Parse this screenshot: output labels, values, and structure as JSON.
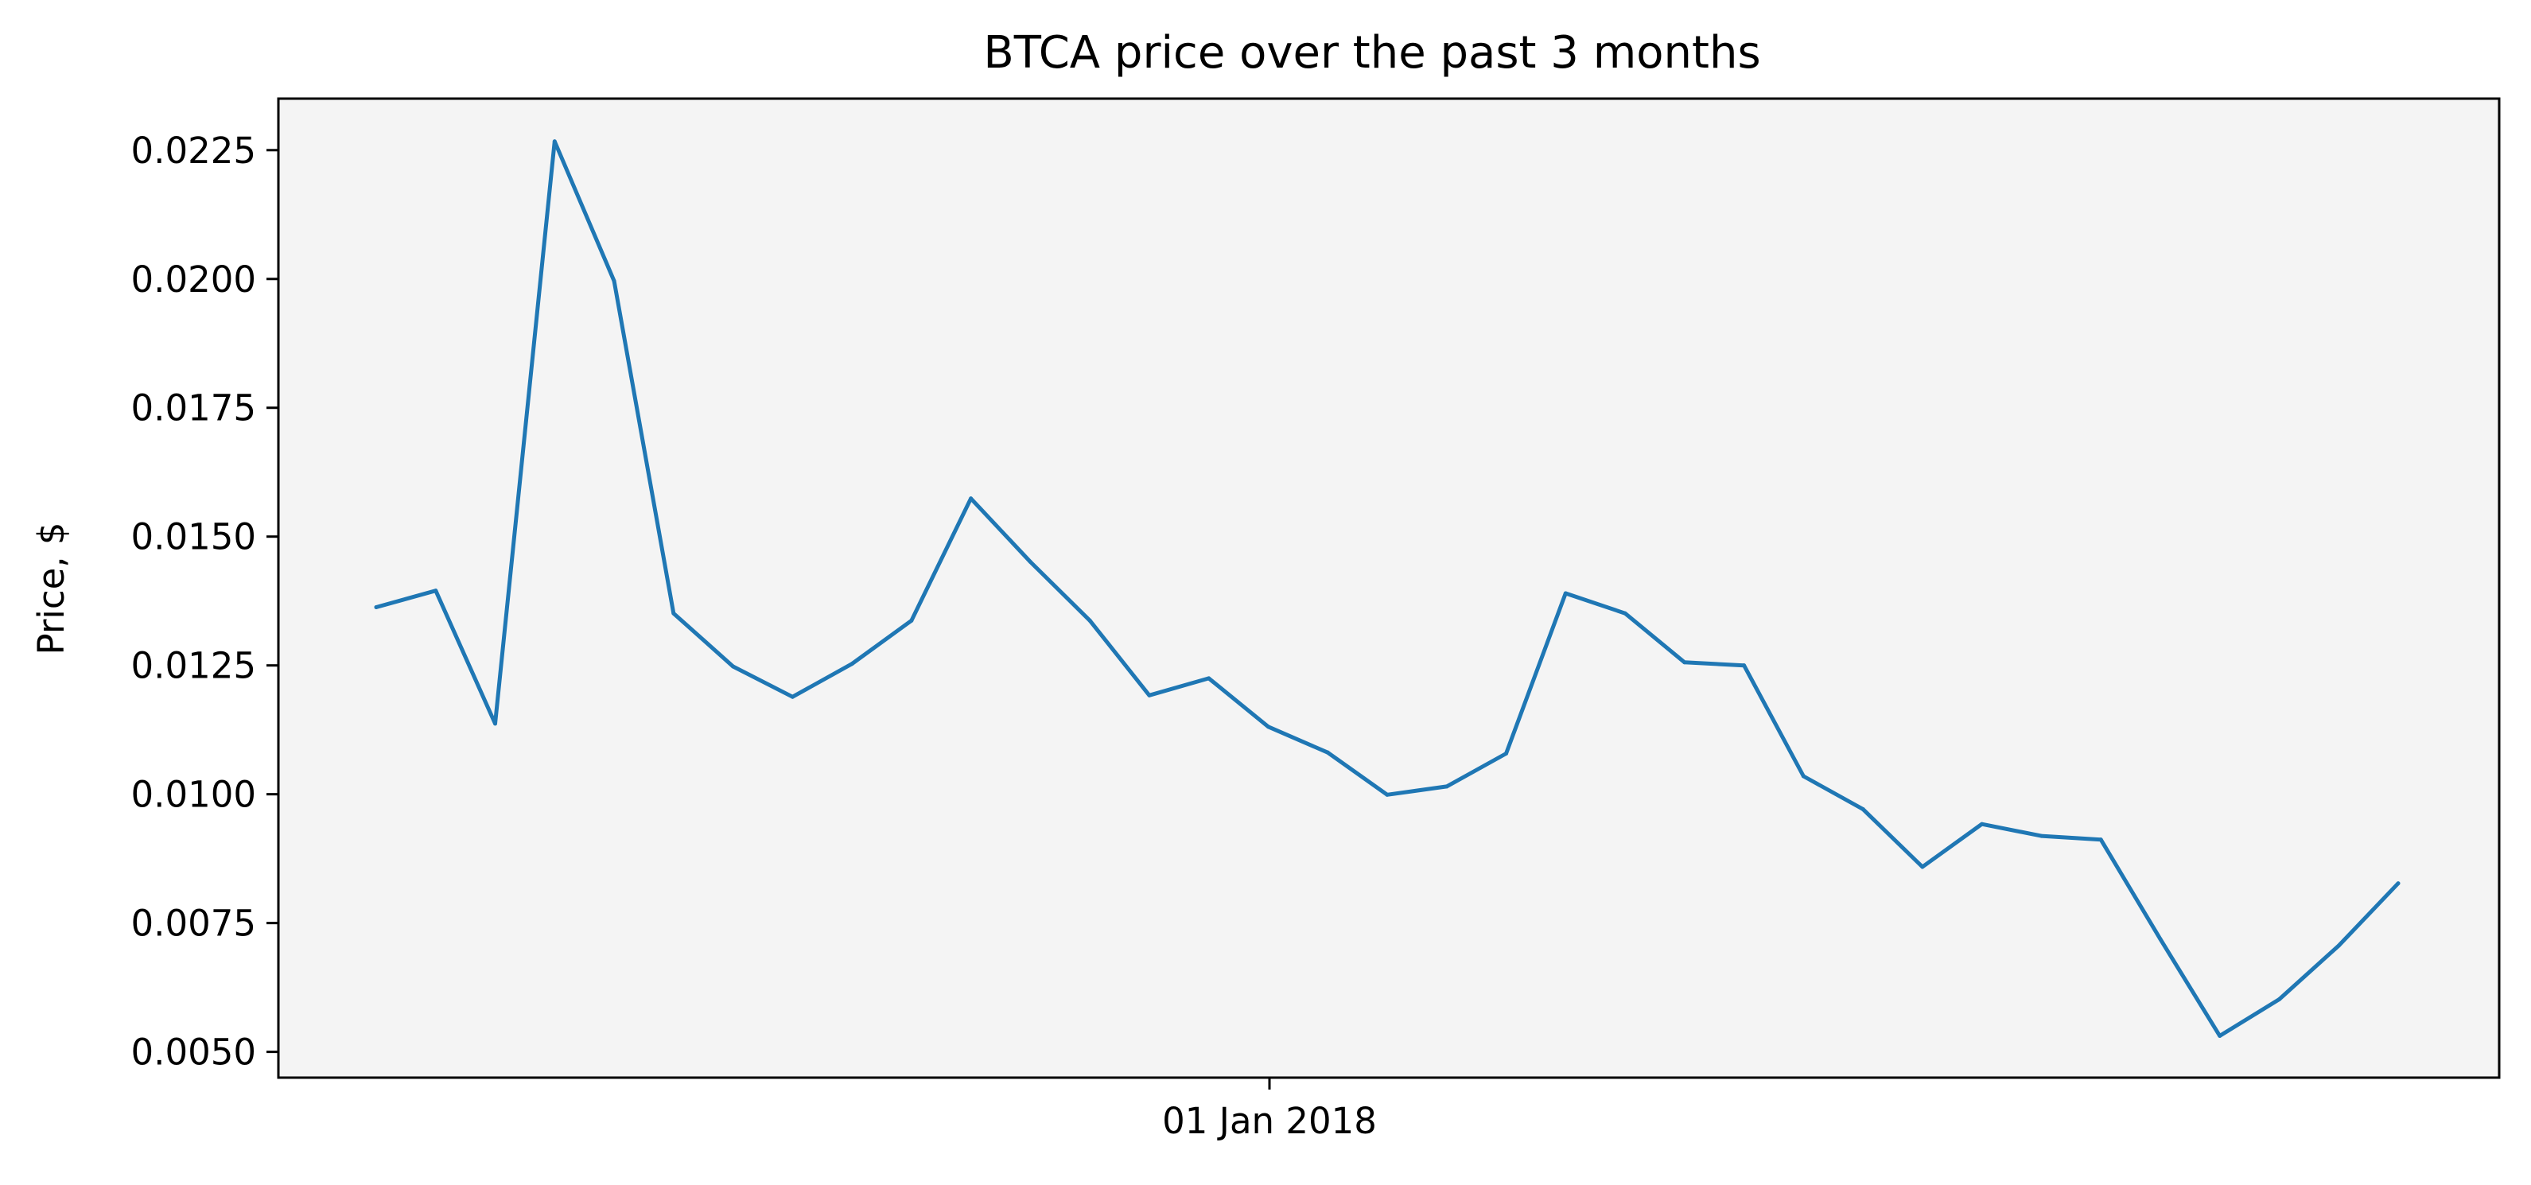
{
  "chart_data": {
    "type": "line",
    "title": "BTCA price over the past 3 months",
    "xlabel": "",
    "ylabel": "Price, $",
    "ylim": [
      0.0045,
      0.0235
    ],
    "yticks": [
      0.005,
      0.0075,
      0.01,
      0.0125,
      0.015,
      0.0175,
      0.02,
      0.0225
    ],
    "ytick_labels": [
      "0.0050",
      "0.0075",
      "0.0100",
      "0.0125",
      "0.0150",
      "0.0175",
      "0.0200",
      "0.0225"
    ],
    "xtick_labels": [
      "01 Jan 2018"
    ],
    "grid": false,
    "background_color": "#f4f4f4",
    "line_color": "#1f77b4",
    "series": [
      {
        "values": [
          0.01363,
          0.01395,
          0.01137,
          0.02267,
          0.01996,
          0.01351,
          0.01248,
          0.01189,
          0.01253,
          0.01337,
          0.01574,
          0.01451,
          0.01337,
          0.01192,
          0.01225,
          0.01131,
          0.01081,
          0.00999,
          0.01015,
          0.01079,
          0.0139,
          0.01351,
          0.01256,
          0.0125,
          0.01035,
          0.00971,
          0.00859,
          0.00942,
          0.00919,
          0.00912,
          0.00719,
          0.00531,
          0.00602,
          0.00706,
          0.00827
        ]
      }
    ]
  }
}
